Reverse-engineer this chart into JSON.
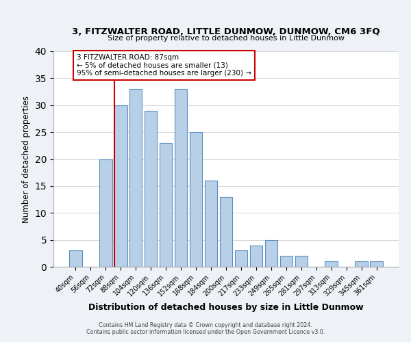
{
  "title": "3, FITZWALTER ROAD, LITTLE DUNMOW, DUNMOW, CM6 3FQ",
  "subtitle": "Size of property relative to detached houses in Little Dunmow",
  "xlabel": "Distribution of detached houses by size in Little Dunmow",
  "ylabel": "Number of detached properties",
  "bar_labels": [
    "40sqm",
    "56sqm",
    "72sqm",
    "88sqm",
    "104sqm",
    "120sqm",
    "136sqm",
    "152sqm",
    "168sqm",
    "184sqm",
    "200sqm",
    "217sqm",
    "233sqm",
    "249sqm",
    "265sqm",
    "281sqm",
    "297sqm",
    "313sqm",
    "329sqm",
    "345sqm",
    "361sqm"
  ],
  "bar_values": [
    3,
    0,
    20,
    30,
    33,
    29,
    23,
    33,
    25,
    16,
    13,
    3,
    4,
    5,
    2,
    2,
    0,
    1,
    0,
    1,
    1
  ],
  "bar_color": "#b8cfe8",
  "bar_edge_color": "#5a8fc0",
  "vline_x_index": 3,
  "vline_color": "#cc0000",
  "annotation_text": "3 FITZWALTER ROAD: 87sqm\n← 5% of detached houses are smaller (13)\n95% of semi-detached houses are larger (230) →",
  "annotation_box_edge_color": "#cc0000",
  "annotation_box_face_color": "#ffffff",
  "ylim": [
    0,
    40
  ],
  "yticks": [
    0,
    5,
    10,
    15,
    20,
    25,
    30,
    35,
    40
  ],
  "footer_line1": "Contains HM Land Registry data © Crown copyright and database right 2024.",
  "footer_line2": "Contains public sector information licensed under the Open Government Licence v3.0.",
  "background_color": "#eef2f7",
  "plot_background_color": "#ffffff",
  "grid_color": "#cccccc"
}
